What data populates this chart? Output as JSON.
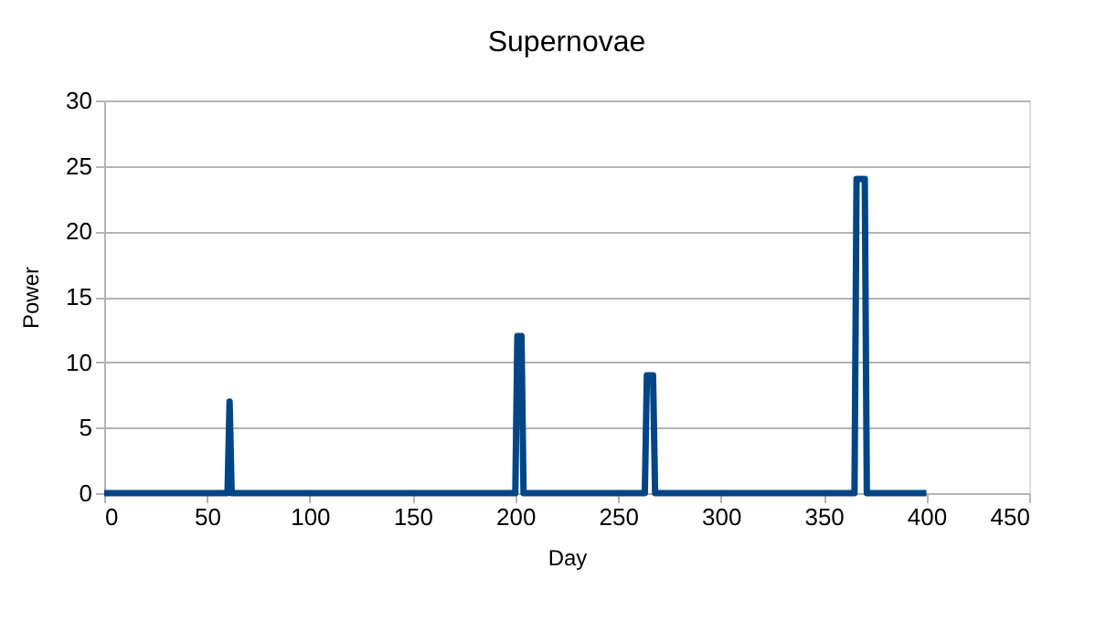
{
  "chart_data": {
    "type": "line",
    "title": "Supernovae",
    "xlabel": "Day",
    "ylabel": "Power",
    "x": [
      0,
      60,
      61,
      62,
      200,
      201,
      203,
      204,
      263,
      264,
      267,
      268,
      365,
      366,
      370,
      371,
      400
    ],
    "series": [
      {
        "color": "#004586",
        "values": [
          0,
          0,
          7,
          0,
          0,
          12,
          12,
          0,
          0,
          9,
          9,
          0,
          0,
          24,
          24,
          0,
          0
        ]
      }
    ],
    "xlim": [
      0,
      450
    ],
    "xticks": [
      0,
      50,
      100,
      150,
      200,
      250,
      300,
      350,
      400,
      450
    ],
    "ylim": [
      0,
      30
    ],
    "yticks": [
      0,
      5,
      10,
      15,
      20,
      25,
      30
    ],
    "grid": "y",
    "legend": false,
    "marker": "none",
    "line_style": "solid"
  }
}
